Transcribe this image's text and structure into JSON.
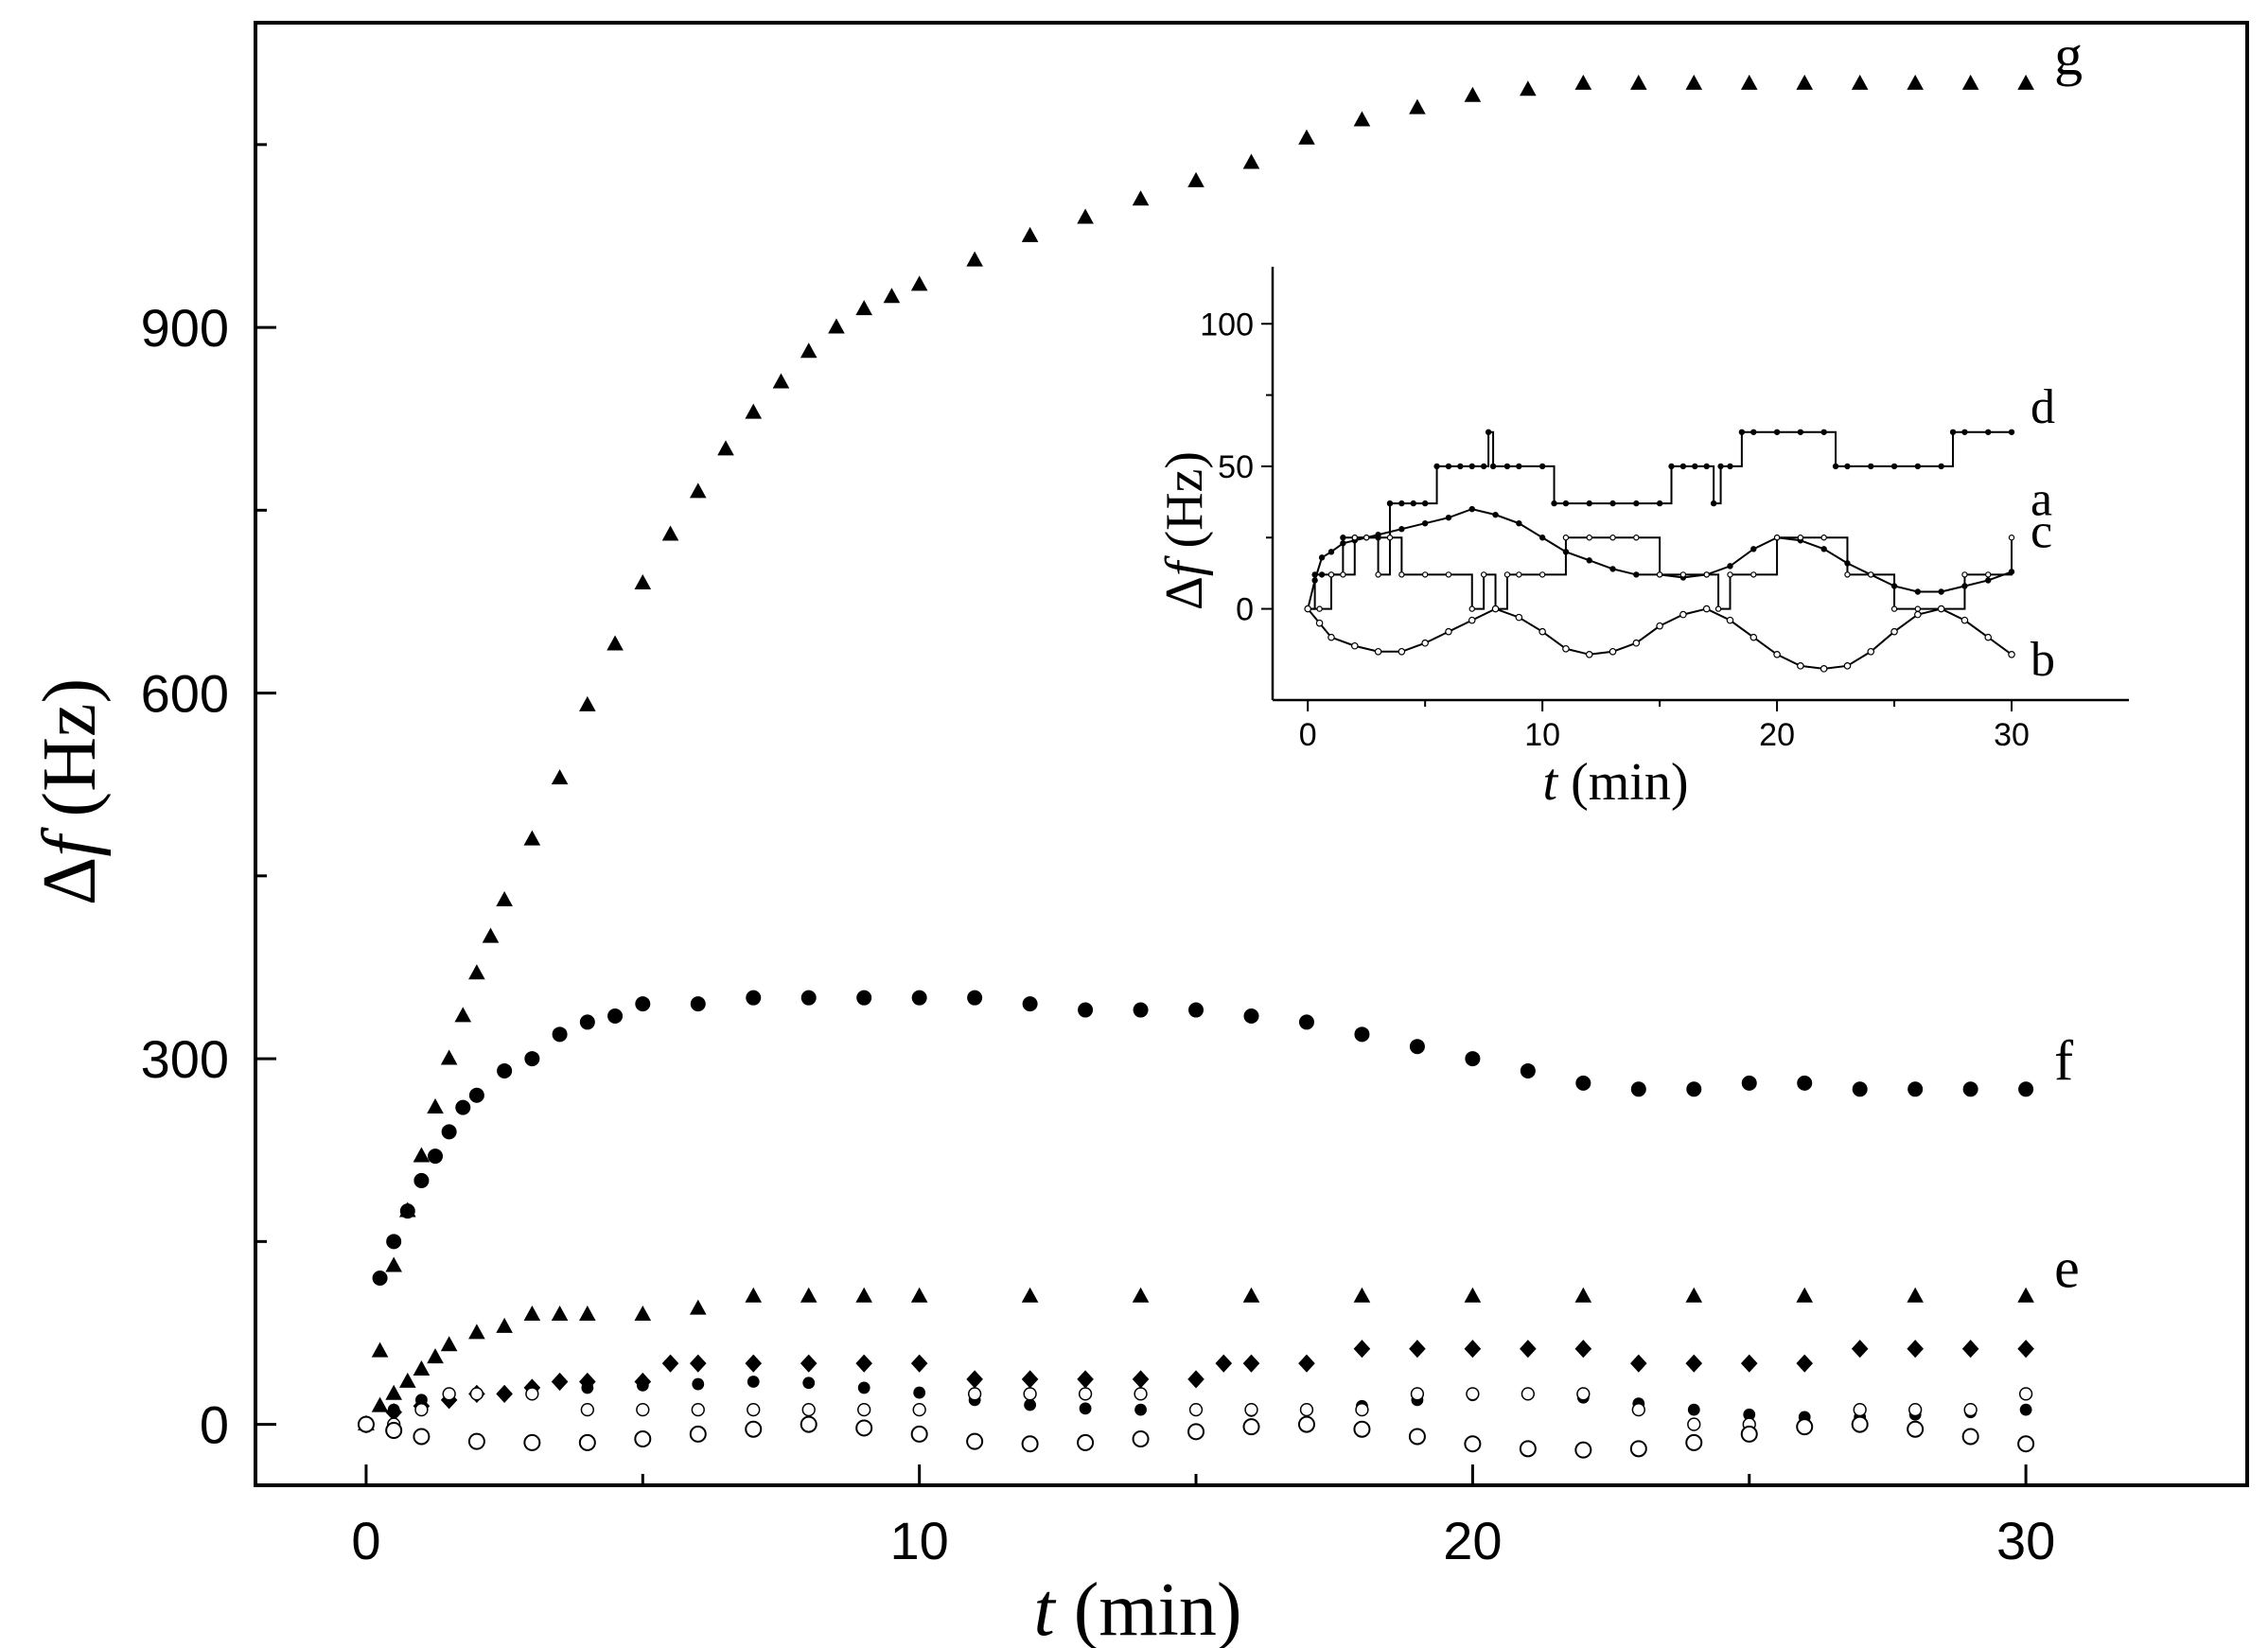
{
  "chart_data": [
    {
      "type": "scatter",
      "xlabel_italic": "t",
      "xlabel_rest": " (min)",
      "ylabel_italic": "f",
      "ylabel_prefix": "Δ",
      "ylabel_rest": " (Hz)",
      "xlim": [
        -2,
        34
      ],
      "ylim": [
        -50,
        1150
      ],
      "xticks": [
        0,
        10,
        20,
        30
      ],
      "xtick_labels": [
        "0",
        "10",
        "20",
        "30"
      ],
      "xticks_minor": [
        5,
        15,
        25
      ],
      "yticks": [
        0,
        300,
        600,
        900
      ],
      "ytick_labels": [
        "0",
        "300",
        "600",
        "900"
      ],
      "yticks_minor": [
        150,
        450,
        750,
        1050
      ],
      "grid": false,
      "legend": "none",
      "series": [
        {
          "label": "g",
          "marker": "triangle",
          "x": [
            0,
            0.25,
            0.5,
            0.75,
            1,
            1.25,
            1.5,
            1.75,
            2,
            2.25,
            2.5,
            3,
            3.5,
            4,
            4.5,
            5,
            5.5,
            6,
            6.5,
            7,
            7.5,
            8,
            8.5,
            9,
            9.5,
            10,
            11,
            12,
            13,
            14,
            15,
            16,
            17,
            18,
            19,
            20,
            21,
            22,
            23,
            24,
            25,
            26,
            27,
            28,
            29,
            30
          ],
          "y": [
            0,
            60,
            130,
            175,
            220,
            260,
            300,
            335,
            370,
            400,
            430,
            480,
            530,
            590,
            640,
            690,
            730,
            765,
            800,
            830,
            855,
            880,
            900,
            915,
            925,
            935,
            955,
            975,
            990,
            1005,
            1020,
            1035,
            1055,
            1070,
            1080,
            1090,
            1095,
            1100,
            1100,
            1100,
            1100,
            1100,
            1100,
            1100,
            1100,
            1100
          ]
        },
        {
          "label": "f",
          "marker": "circle-filled",
          "x": [
            0,
            0.25,
            0.5,
            0.75,
            1,
            1.25,
            1.5,
            1.75,
            2,
            2.5,
            3,
            3.5,
            4,
            4.5,
            5,
            6,
            7,
            8,
            9,
            10,
            11,
            12,
            13,
            14,
            15,
            16,
            17,
            18,
            19,
            20,
            21,
            22,
            23,
            24,
            25,
            26,
            27,
            28,
            29,
            30
          ],
          "y": [
            0,
            120,
            150,
            175,
            200,
            220,
            240,
            260,
            270,
            290,
            300,
            320,
            330,
            335,
            345,
            345,
            350,
            350,
            350,
            350,
            350,
            345,
            340,
            340,
            340,
            335,
            330,
            320,
            310,
            300,
            290,
            280,
            275,
            275,
            280,
            280,
            275,
            275,
            275,
            275
          ]
        },
        {
          "label": "e",
          "marker": "triangle",
          "x": [
            0,
            0.25,
            0.5,
            0.75,
            1,
            1.25,
            1.5,
            2,
            2.5,
            3,
            3.5,
            4,
            5,
            6,
            7,
            8,
            9,
            10,
            12,
            14,
            16,
            18,
            20,
            22,
            24,
            26,
            28,
            30
          ],
          "y": [
            0,
            15,
            25,
            35,
            45,
            55,
            65,
            75,
            80,
            90,
            90,
            90,
            90,
            95,
            105,
            105,
            105,
            105,
            105,
            105,
            105,
            105,
            105,
            105,
            105,
            105,
            105,
            105
          ]
        },
        {
          "label": "d",
          "marker": "diamond",
          "x": [
            0,
            0.5,
            1,
            1.5,
            2,
            2.5,
            3,
            3.5,
            4,
            5,
            5.5,
            6,
            7,
            8,
            9,
            10,
            11,
            12,
            13,
            14,
            15,
            15.5,
            16,
            17,
            18,
            19,
            20,
            21,
            22,
            23,
            24,
            25,
            26,
            27,
            28,
            29,
            30
          ],
          "y": [
            0,
            10,
            15,
            20,
            25,
            25,
            30,
            35,
            35,
            35,
            50,
            50,
            50,
            50,
            50,
            50,
            37,
            37,
            37,
            37,
            37,
            50,
            50,
            50,
            62,
            62,
            62,
            62,
            62,
            50,
            50,
            50,
            50,
            62,
            62,
            62,
            62
          ]
        },
        {
          "label": "a",
          "marker": "circle-small-filled",
          "x": [
            0,
            0.5,
            1,
            2,
            3,
            4,
            5,
            6,
            7,
            8,
            9,
            10,
            11,
            12,
            13,
            14,
            15,
            16,
            17,
            18,
            19,
            20,
            21,
            22,
            23,
            24,
            25,
            26,
            27,
            28,
            29,
            30
          ],
          "y": [
            0,
            12,
            20,
            25,
            28,
            30,
            32,
            33,
            35,
            34,
            30,
            26,
            20,
            16,
            13,
            12,
            12,
            11,
            12,
            15,
            20,
            24,
            25,
            22,
            17,
            12,
            8,
            6,
            6,
            8,
            10,
            12
          ]
        },
        {
          "label": "c",
          "marker": "circle-open-small",
          "x": [
            0,
            0.5,
            1,
            1.5,
            2,
            3,
            4,
            5,
            6,
            7,
            8,
            9,
            10,
            11,
            12,
            13,
            14,
            15,
            16,
            17,
            18,
            19,
            20,
            21,
            22,
            23,
            24,
            25,
            26,
            27,
            28,
            29,
            30
          ],
          "y": [
            0,
            0,
            12,
            25,
            25,
            25,
            12,
            12,
            12,
            12,
            12,
            12,
            12,
            25,
            25,
            25,
            25,
            12,
            12,
            12,
            12,
            25,
            25,
            25,
            25,
            12,
            0,
            0,
            0,
            12,
            12,
            12,
            25
          ]
        },
        {
          "label": "b",
          "marker": "circle-open",
          "x": [
            0,
            0.5,
            1,
            2,
            3,
            4,
            5,
            6,
            7,
            8,
            9,
            10,
            11,
            12,
            13,
            14,
            15,
            16,
            17,
            18,
            19,
            20,
            21,
            22,
            23,
            24,
            25,
            26,
            27,
            28,
            29,
            30
          ],
          "y": [
            0,
            -5,
            -10,
            -14,
            -15,
            -15,
            -12,
            -8,
            -4,
            0,
            -3,
            -8,
            -14,
            -16,
            -15,
            -12,
            -6,
            -2,
            0,
            -4,
            -10,
            -16,
            -20,
            -21,
            -20,
            -15,
            -8,
            -2,
            0,
            -4,
            -10,
            -16
          ]
        }
      ]
    },
    {
      "type": "line",
      "inset": true,
      "xlabel_italic": "t",
      "xlabel_rest": " (min)",
      "ylabel_italic": "f",
      "ylabel_prefix": "Δ",
      "ylabel_rest": " (Hz)",
      "xlim": [
        -1.5,
        35
      ],
      "ylim": [
        -32,
        120
      ],
      "xticks": [
        0,
        10,
        20,
        30
      ],
      "xtick_labels": [
        "0",
        "10",
        "20",
        "30"
      ],
      "yticks": [
        0,
        50,
        100
      ],
      "ytick_labels": [
        "0",
        "50",
        "100"
      ],
      "grid": false,
      "legend": "none",
      "series": [
        {
          "label": "d",
          "x": [
            0,
            0.3,
            0.6,
            1,
            1.5,
            2,
            2.5,
            3,
            3.5,
            4,
            4.5,
            5,
            5.5,
            6,
            6.5,
            7,
            7.5,
            7.7,
            7.9,
            8.5,
            9,
            10,
            10.5,
            11,
            12,
            13,
            14,
            15,
            15.5,
            16,
            16.5,
            17,
            17.3,
            17.6,
            18,
            18.5,
            19,
            20,
            21,
            22,
            22.5,
            23,
            24,
            25,
            26,
            27,
            27.5,
            28,
            29,
            30
          ],
          "y": [
            0,
            12,
            12,
            12,
            25,
            25,
            25,
            25,
            37,
            37,
            37,
            37,
            50,
            50,
            50,
            50,
            50,
            62,
            50,
            50,
            50,
            50,
            37,
            37,
            37,
            37,
            37,
            37,
            50,
            50,
            50,
            50,
            37,
            50,
            50,
            62,
            62,
            62,
            62,
            62,
            50,
            50,
            50,
            50,
            50,
            50,
            62,
            62,
            62,
            62
          ]
        },
        {
          "label": "a",
          "x": [
            0,
            0.3,
            0.6,
            1,
            1.5,
            2,
            3,
            4,
            5,
            6,
            7,
            8,
            9,
            10,
            11,
            12,
            13,
            14,
            15,
            16,
            17,
            18,
            19,
            20,
            21,
            22,
            23,
            24,
            25,
            26,
            27,
            28,
            29,
            30
          ],
          "y": [
            0,
            10,
            18,
            20,
            23,
            24,
            26,
            28,
            30,
            32,
            35,
            33,
            30,
            25,
            20,
            17,
            14,
            12,
            12,
            11,
            12,
            15,
            21,
            25,
            24,
            21,
            16,
            12,
            8,
            6,
            6,
            8,
            10,
            13
          ]
        },
        {
          "label": "c",
          "x": [
            0,
            0.5,
            1,
            1.5,
            2,
            2.5,
            3,
            3.5,
            4,
            5,
            6,
            7,
            7.5,
            8,
            8.5,
            9,
            10,
            11,
            12,
            13,
            14,
            15,
            16,
            17,
            17.5,
            18,
            19,
            20,
            21,
            22,
            23,
            24,
            25,
            26,
            27,
            28,
            29,
            30
          ],
          "y": [
            0,
            0,
            12,
            12,
            25,
            25,
            12,
            25,
            12,
            12,
            12,
            0,
            12,
            0,
            12,
            12,
            12,
            25,
            25,
            25,
            25,
            12,
            12,
            12,
            0,
            12,
            12,
            25,
            25,
            25,
            12,
            12,
            0,
            0,
            0,
            12,
            12,
            25
          ]
        },
        {
          "label": "b",
          "x": [
            0,
            0.5,
            1,
            2,
            3,
            4,
            5,
            6,
            7,
            8,
            9,
            10,
            11,
            12,
            13,
            14,
            15,
            16,
            17,
            18,
            19,
            20,
            21,
            22,
            23,
            24,
            25,
            26,
            27,
            28,
            29,
            30
          ],
          "y": [
            0,
            -5,
            -10,
            -13,
            -15,
            -15,
            -12,
            -8,
            -4,
            0,
            -3,
            -8,
            -14,
            -16,
            -15,
            -12,
            -6,
            -2,
            0,
            -4,
            -10,
            -16,
            -20,
            -21,
            -20,
            -15,
            -8,
            -2,
            0,
            -4,
            -10,
            -16
          ]
        }
      ]
    }
  ]
}
